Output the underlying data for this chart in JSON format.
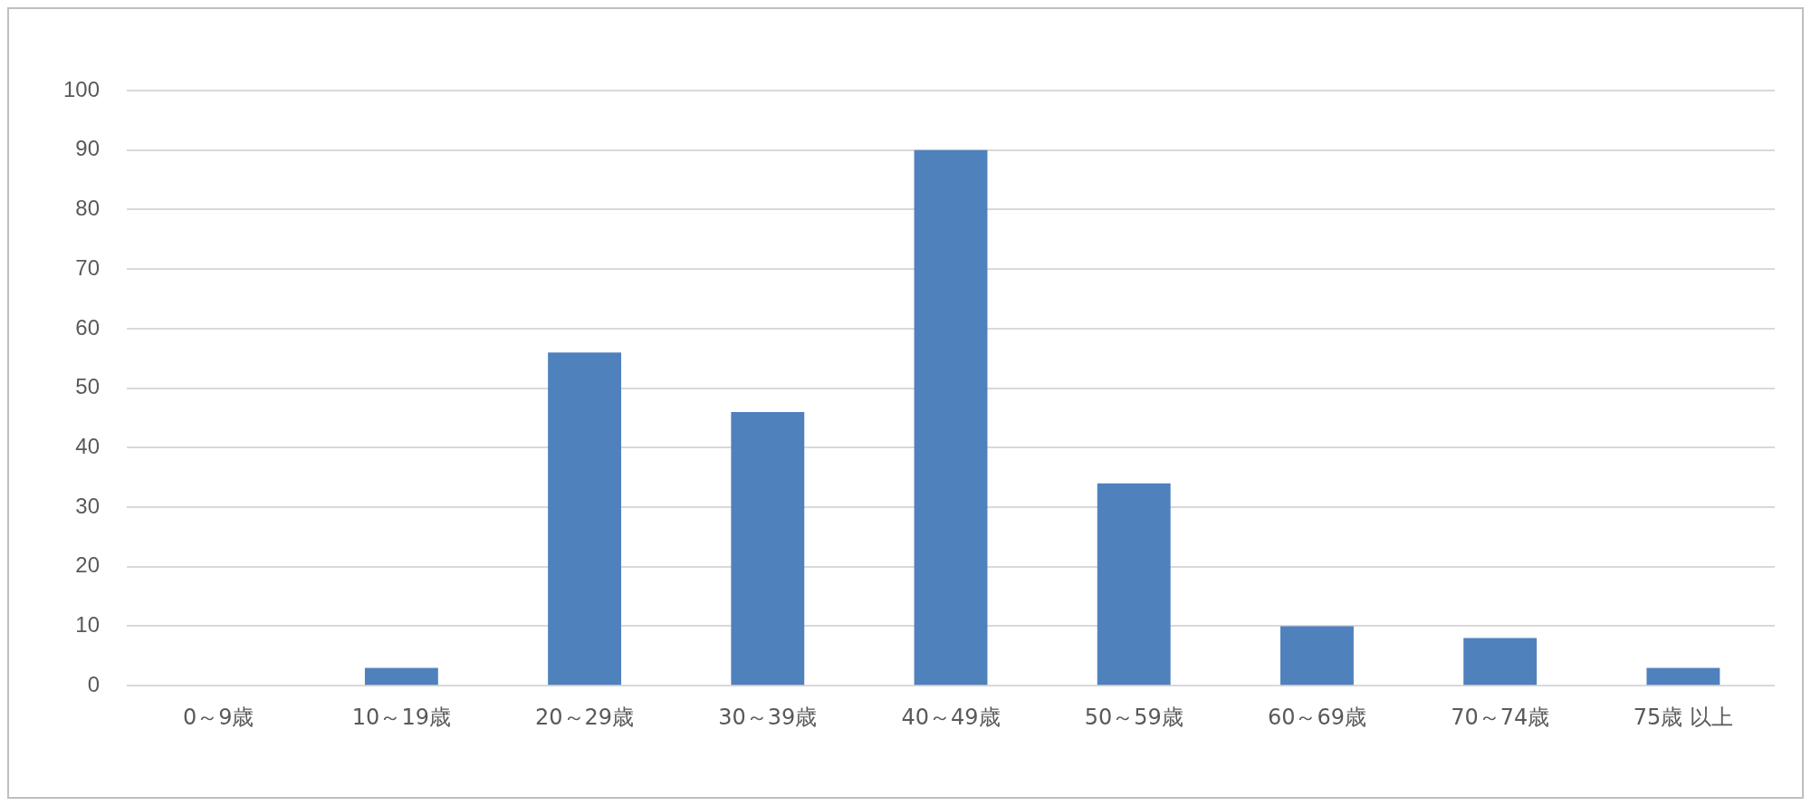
{
  "chart_data": {
    "type": "bar",
    "categories": [
      "0～9歳",
      "10～19歳",
      "20～29歳",
      "30～39歳",
      "40～49歳",
      "50～59歳",
      "60～69歳",
      "70～74歳",
      "75歳 以上"
    ],
    "values": [
      0,
      3,
      56,
      46,
      90,
      34,
      10,
      8,
      3
    ],
    "color": "#4f81bd",
    "ylim": [
      0,
      100
    ],
    "yticks": [
      0,
      10,
      20,
      30,
      40,
      50,
      60,
      70,
      80,
      90,
      100
    ],
    "grid": "y",
    "legend": false
  }
}
